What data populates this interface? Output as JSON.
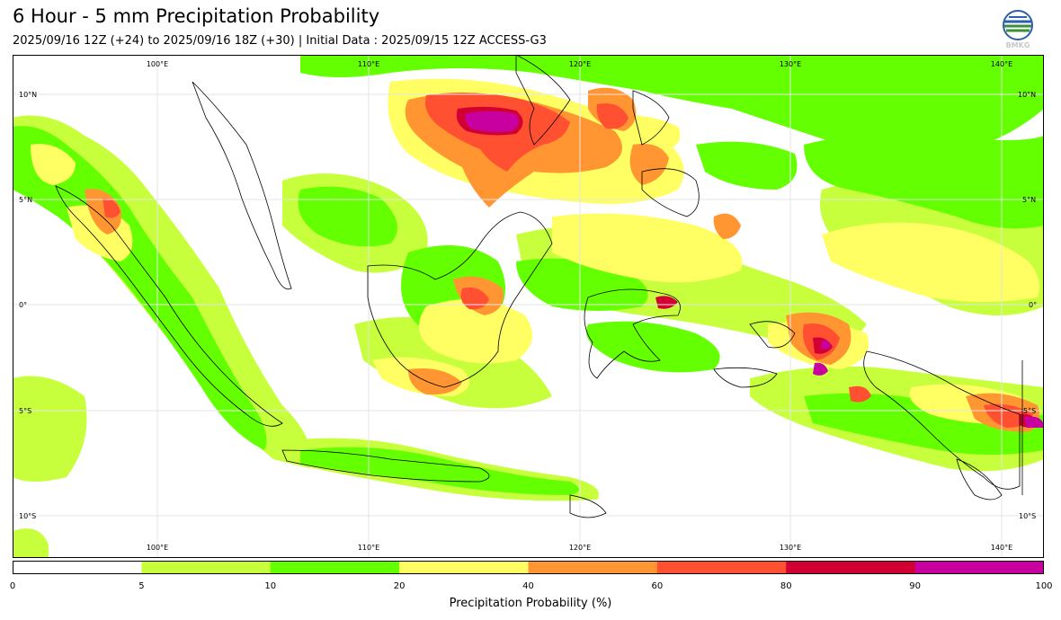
{
  "header": {
    "title": "6 Hour - 5 mm Precipitation Probability",
    "subtitle": "2025/09/16 12Z (+24) to 2025/09/16 18Z (+30) | Initial Data : 2025/09/15 12Z ACCESS-G3",
    "logo_text": "BMKG"
  },
  "map": {
    "lon_labels": [
      "100°E",
      "110°E",
      "120°E",
      "130°E",
      "140°E"
    ],
    "lat_labels": [
      "10°N",
      "5°N",
      "0°",
      "5°S",
      "10°S"
    ],
    "colors": {
      "land_outline": "#000000",
      "grid": "#e4e4e4"
    }
  },
  "colorbar": {
    "label": "Precipitation Probability (%)",
    "ticks": [
      "0",
      "5",
      "10",
      "20",
      "40",
      "60",
      "80",
      "90",
      "100"
    ],
    "colors": [
      "#ffffff",
      "#c8ff3c",
      "#64ff00",
      "#ffff64",
      "#ff9632",
      "#ff5032",
      "#d20032",
      "#c800a0"
    ]
  }
}
